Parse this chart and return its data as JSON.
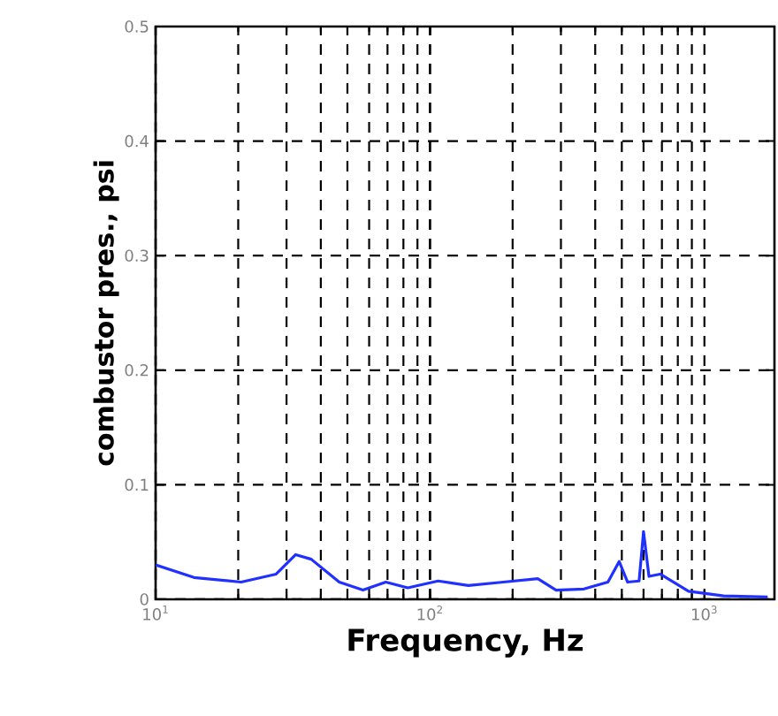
{
  "chart_data": {
    "type": "line",
    "xlabel": "Frequency, Hz",
    "ylabel": "combustor pres., psi",
    "log": "x",
    "grid": true,
    "xlim": [
      10,
      1800
    ],
    "ylim": [
      0,
      0.5
    ],
    "xticks": [
      {
        "value": 10,
        "label": "10$^{1}$"
      },
      {
        "value": 100,
        "label": "10$^{2}$"
      },
      {
        "value": 1000,
        "label": "10$^{3}$"
      }
    ],
    "yticks": [
      0,
      0.1,
      0.2,
      0.3,
      0.4,
      0.5
    ],
    "series": [
      {
        "color": "#2030ff",
        "x": [
          10,
          13.8,
          20.5,
          27.5,
          32.4,
          36.9,
          46.7,
          57,
          69,
          83,
          107,
          138,
          185,
          247,
          288,
          364,
          445,
          489,
          525,
          578,
          600,
          628,
          690,
          875,
          1175,
          1700
        ],
        "values": [
          0.03,
          0.019,
          0.015,
          0.022,
          0.039,
          0.035,
          0.015,
          0.008,
          0.015,
          0.01,
          0.016,
          0.012,
          0.015,
          0.018,
          0.008,
          0.009,
          0.015,
          0.033,
          0.015,
          0.016,
          0.059,
          0.02,
          0.022,
          0.007,
          0.003,
          0.002
        ]
      }
    ]
  }
}
